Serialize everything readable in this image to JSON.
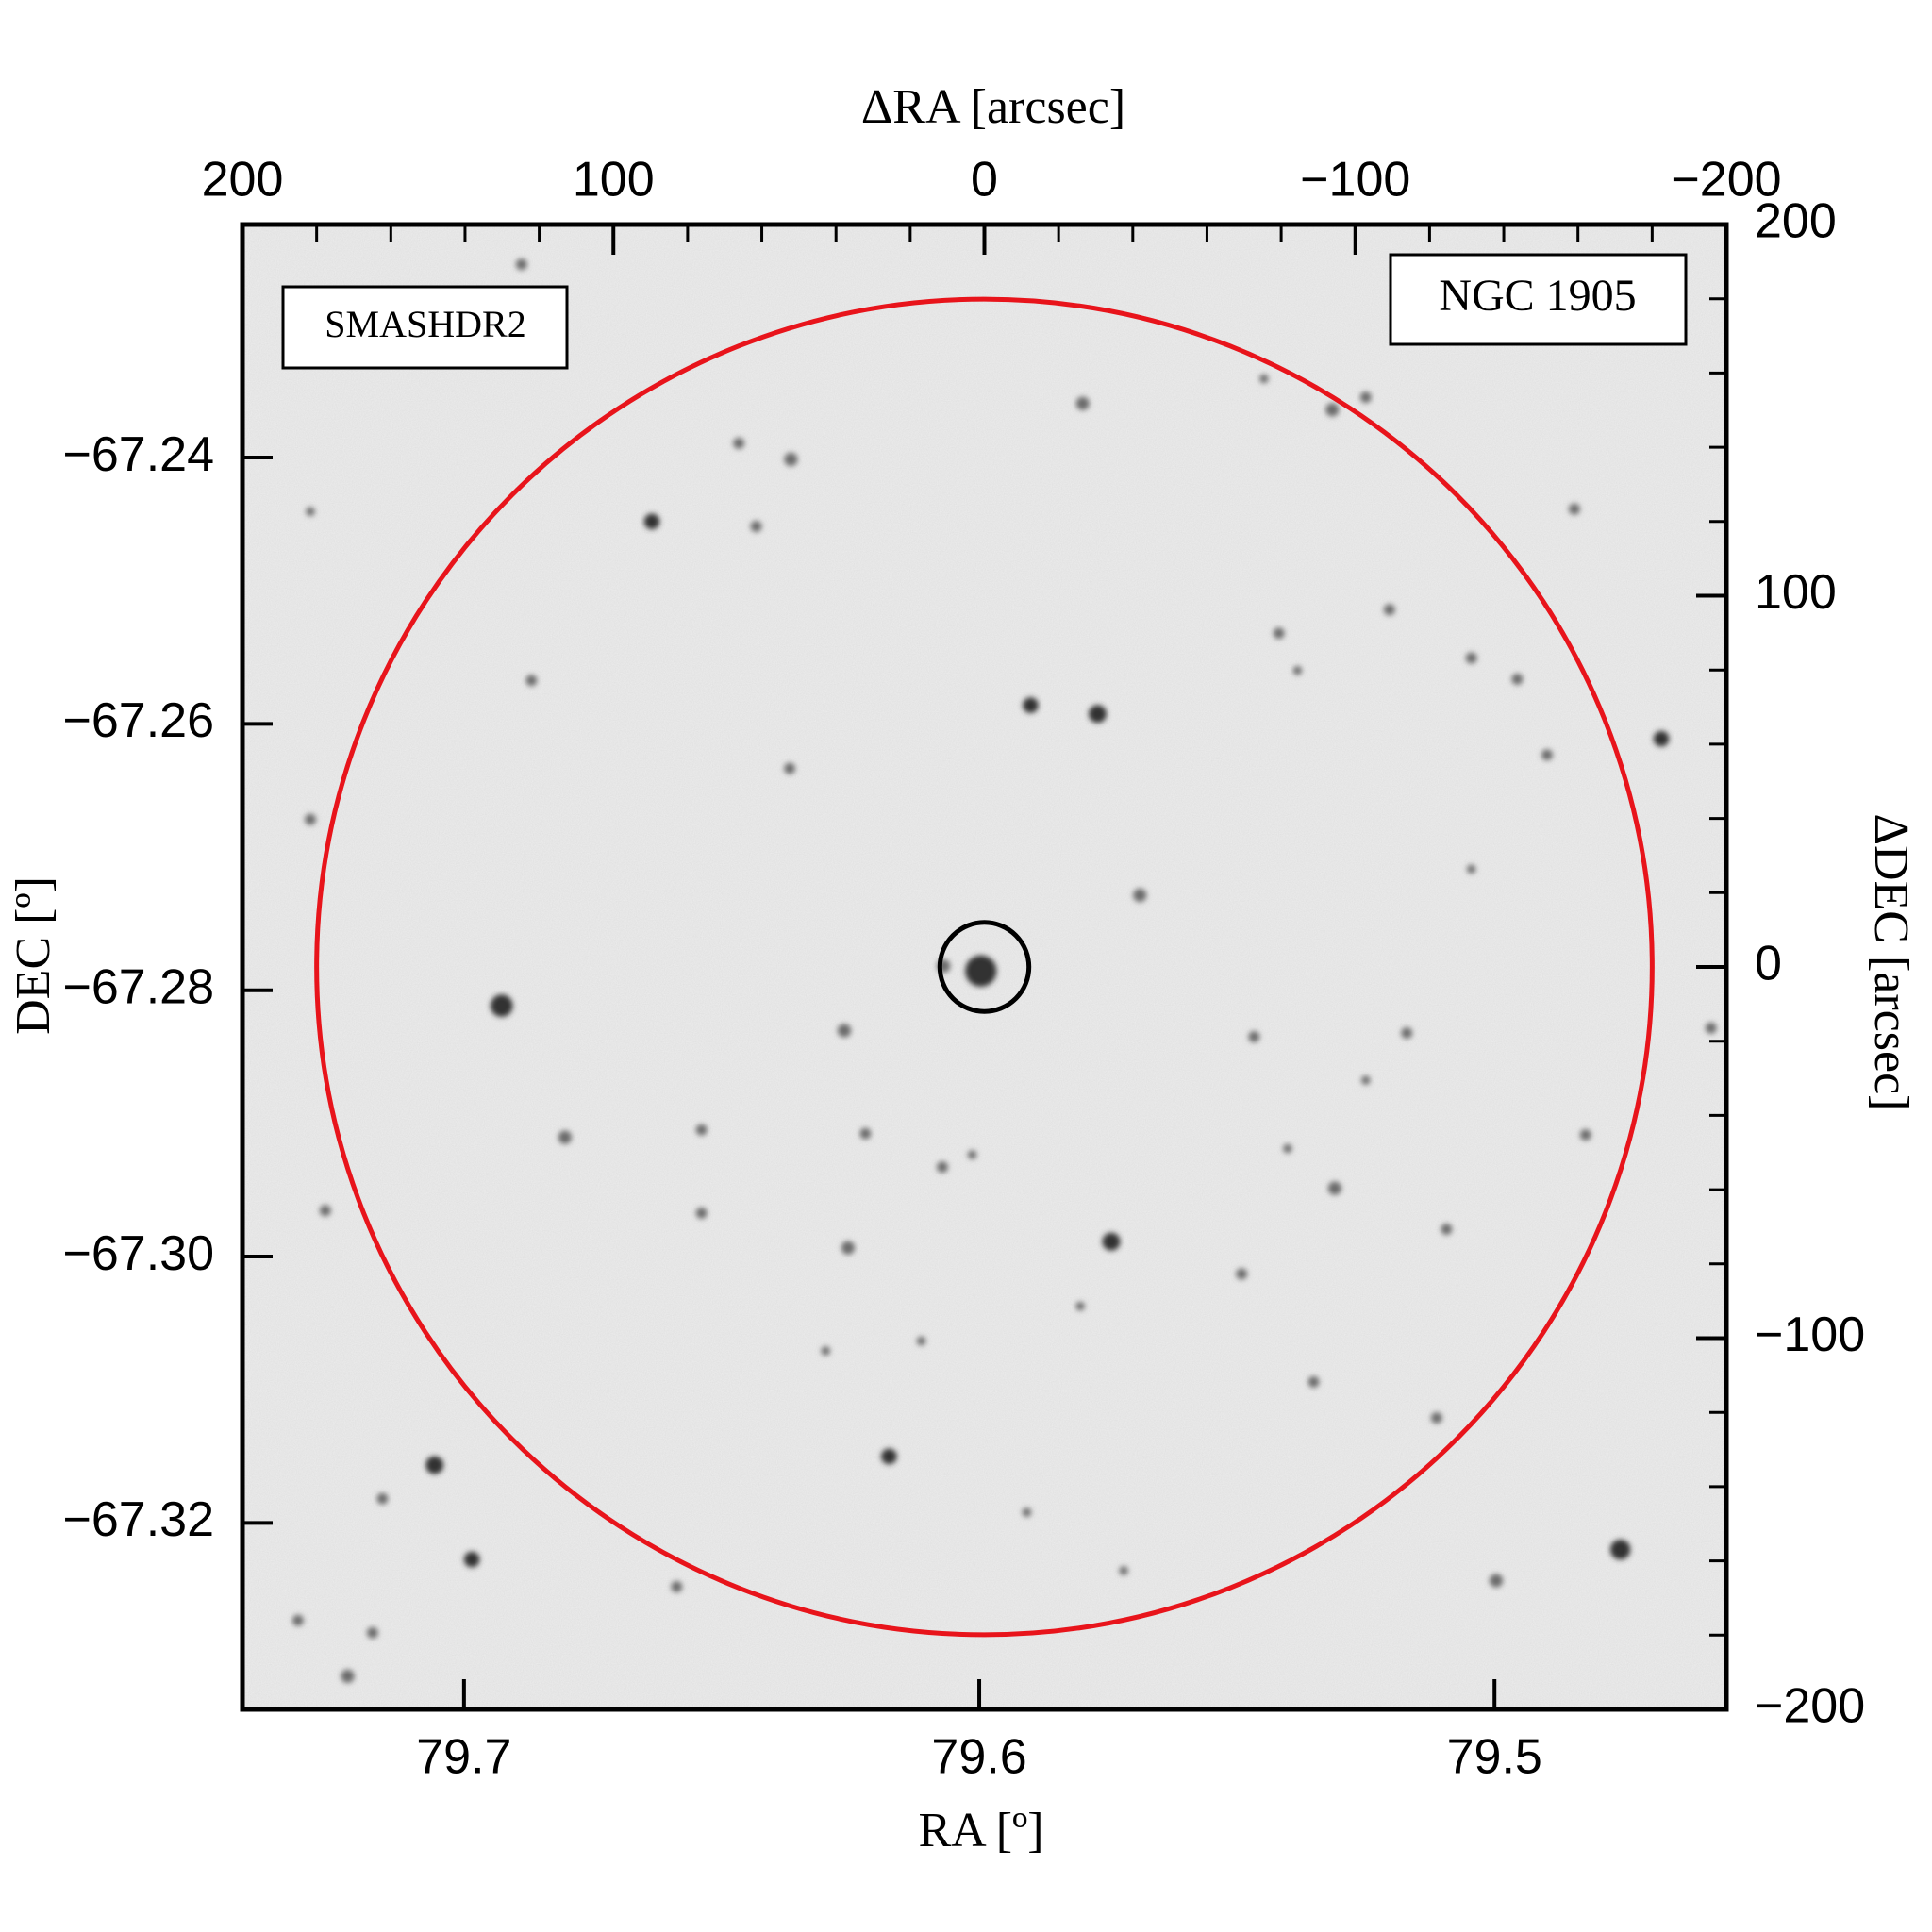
{
  "chart_data": {
    "type": "sky-image",
    "xlabel": "RA [º]",
    "ylabel": "DEC [º]",
    "x2label": "ΔRA [arcsec]",
    "y2label": "ΔDEC [arcsec]",
    "xlim": [
      79.743,
      79.455
    ],
    "xticks": [
      79.7,
      79.6,
      79.5
    ],
    "ylim": [
      -67.334,
      -67.2225
    ],
    "yticks": [
      {
        "value": -67.24,
        "label": "−67.24"
      },
      {
        "value": -67.26,
        "label": "−67.26"
      },
      {
        "value": -67.28,
        "label": "−67.28"
      },
      {
        "value": -67.3,
        "label": "−67.30"
      },
      {
        "value": -67.32,
        "label": "−67.32"
      }
    ],
    "x2lim": [
      200,
      -200
    ],
    "x2ticks": [
      200,
      100,
      0,
      {
        "value": -100,
        "label": "−100"
      },
      {
        "value": -200,
        "label": "−200"
      }
    ],
    "x2minor": [
      180,
      160,
      140,
      120,
      80,
      60,
      40,
      20,
      -20,
      -40,
      -60,
      -80,
      -120,
      -140,
      -160,
      -180
    ],
    "y2lim": [
      -200,
      200
    ],
    "y2ticks": [
      200,
      100,
      0,
      {
        "value": -100,
        "label": "−100"
      },
      {
        "value": -200,
        "label": "−200"
      }
    ],
    "y2minor": [
      180,
      160,
      140,
      120,
      80,
      60,
      40,
      20,
      -20,
      -40,
      -60,
      -80,
      -120,
      -140,
      -160,
      -180
    ],
    "circles": [
      {
        "center": [
          0,
          0
        ],
        "radius": 180,
        "color": "#e8141b"
      },
      {
        "center": [
          0,
          0
        ],
        "radius": 12,
        "color": "#000000"
      }
    ],
    "annotations": [
      {
        "text": "SMASHDR2",
        "color": "#e8141b"
      },
      {
        "text": "NGC 1905",
        "color": "#000000"
      }
    ]
  }
}
